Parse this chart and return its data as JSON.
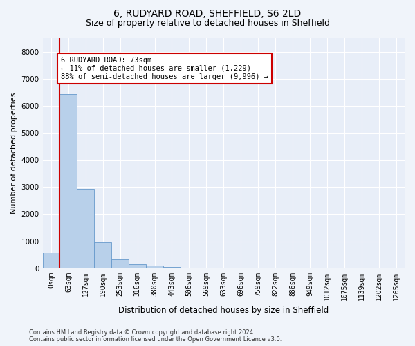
{
  "title_line1": "6, RUDYARD ROAD, SHEFFIELD, S6 2LD",
  "title_line2": "Size of property relative to detached houses in Sheffield",
  "xlabel": "Distribution of detached houses by size in Sheffield",
  "ylabel": "Number of detached properties",
  "bar_labels": [
    "0sqm",
    "63sqm",
    "127sqm",
    "190sqm",
    "253sqm",
    "316sqm",
    "380sqm",
    "443sqm",
    "506sqm",
    "569sqm",
    "633sqm",
    "696sqm",
    "759sqm",
    "822sqm",
    "886sqm",
    "949sqm",
    "1012sqm",
    "1075sqm",
    "1139sqm",
    "1202sqm",
    "1265sqm"
  ],
  "bar_values": [
    580,
    6420,
    2920,
    970,
    355,
    155,
    90,
    50,
    0,
    0,
    0,
    0,
    0,
    0,
    0,
    0,
    0,
    0,
    0,
    0,
    0
  ],
  "bar_color": "#b8d0ea",
  "bar_edge_color": "#6699cc",
  "highlight_line_color": "#cc0000",
  "annotation_text": "6 RUDYARD ROAD: 73sqm\n← 11% of detached houses are smaller (1,229)\n88% of semi-detached houses are larger (9,996) →",
  "annotation_box_color": "#ffffff",
  "annotation_border_color": "#cc0000",
  "ylim": [
    0,
    8500
  ],
  "yticks": [
    0,
    1000,
    2000,
    3000,
    4000,
    5000,
    6000,
    7000,
    8000
  ],
  "footer_line1": "Contains HM Land Registry data © Crown copyright and database right 2024.",
  "footer_line2": "Contains public sector information licensed under the Open Government Licence v3.0.",
  "bg_color": "#f0f4fa",
  "plot_bg_color": "#e8eef8",
  "grid_color": "#ffffff",
  "title1_fontsize": 10,
  "title2_fontsize": 9,
  "ylabel_fontsize": 8,
  "xlabel_fontsize": 8.5,
  "tick_fontsize": 7,
  "annot_fontsize": 7.5,
  "footer_fontsize": 6
}
